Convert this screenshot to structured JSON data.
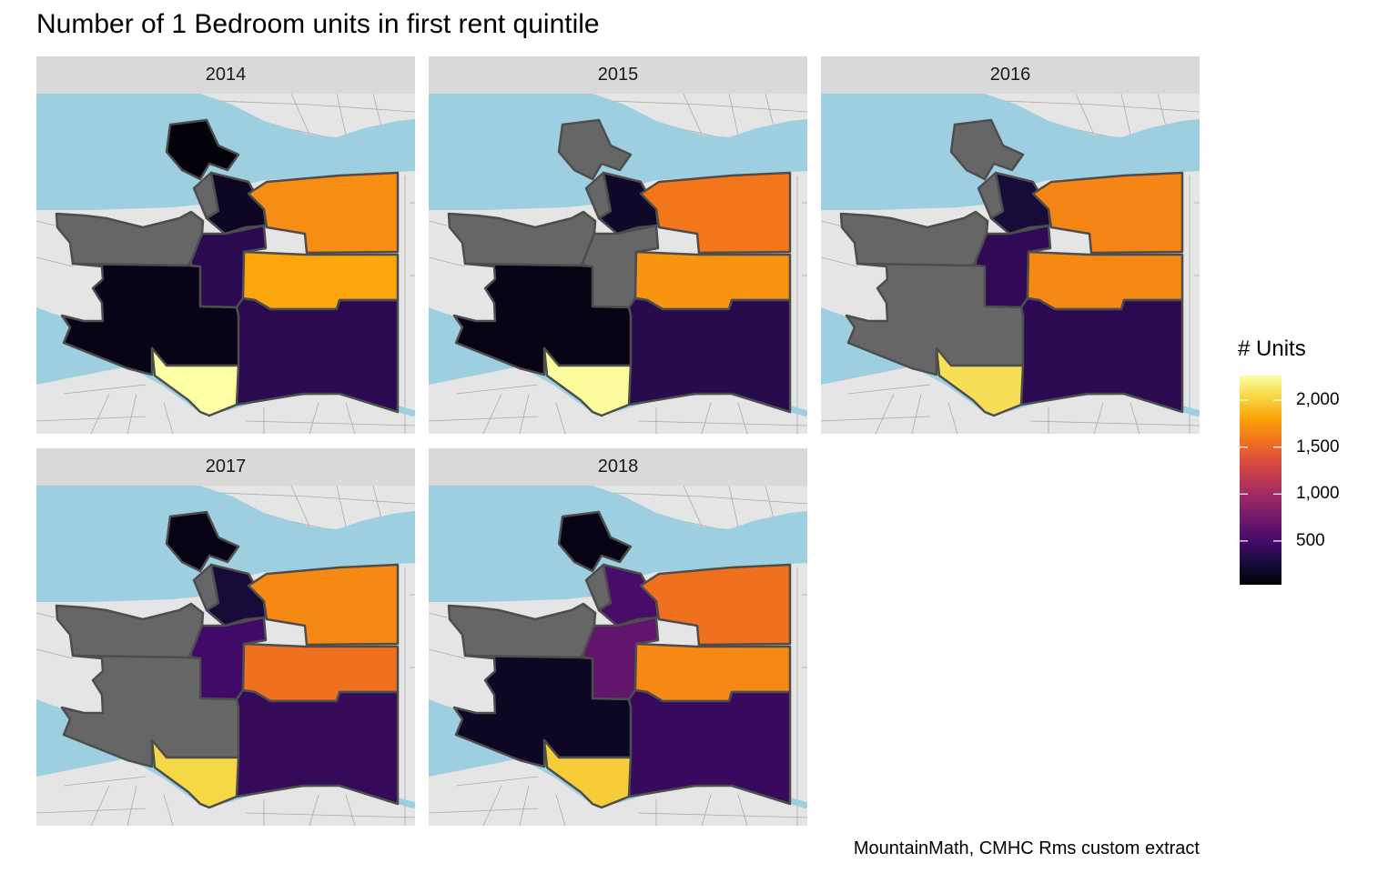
{
  "title": "Number of 1 Bedroom units in first rent quintile",
  "caption": "MountainMath, CMHC Rms custom extract",
  "colors": {
    "land": "#e5e5e5",
    "water": "#9ecfe0",
    "road": "#aaaaaa",
    "border": "#4d4d4d",
    "na": "#666666",
    "strip": "#d9d9d9"
  },
  "chart_data": {
    "type": "choropleth",
    "title": "Number of 1 Bedroom units in first rent quintile",
    "palette": "inferno",
    "legend": {
      "title": "# Units",
      "placement": "right",
      "range": [
        34,
        2262
      ],
      "ticks": [
        2000,
        1500,
        1000,
        500
      ],
      "tick_labels": [
        "2,000",
        "1,500",
        "1,000",
        "500"
      ]
    },
    "zones": [
      "zone-a",
      "zone-b",
      "zone-c",
      "zone-d",
      "zone-e",
      "zone-f",
      "zone-g",
      "zone-h",
      "zone-i",
      "zone-j"
    ],
    "facets": [
      {
        "label": "2014",
        "values": [
          60,
          null,
          170,
          1700,
          null,
          370,
          1820,
          370,
          120,
          2260
        ]
      },
      {
        "label": "2015",
        "values": [
          null,
          null,
          190,
          1590,
          null,
          null,
          1730,
          350,
          100,
          2240
        ]
      },
      {
        "label": "2016",
        "values": [
          null,
          null,
          260,
          1660,
          null,
          390,
          1680,
          370,
          null,
          2080
        ]
      },
      {
        "label": "2017",
        "values": [
          100,
          null,
          260,
          1680,
          null,
          480,
          1550,
          410,
          null,
          2040
        ]
      },
      {
        "label": "2018",
        "values": [
          100,
          null,
          520,
          1550,
          null,
          660,
          1680,
          430,
          170,
          1990
        ]
      }
    ]
  }
}
